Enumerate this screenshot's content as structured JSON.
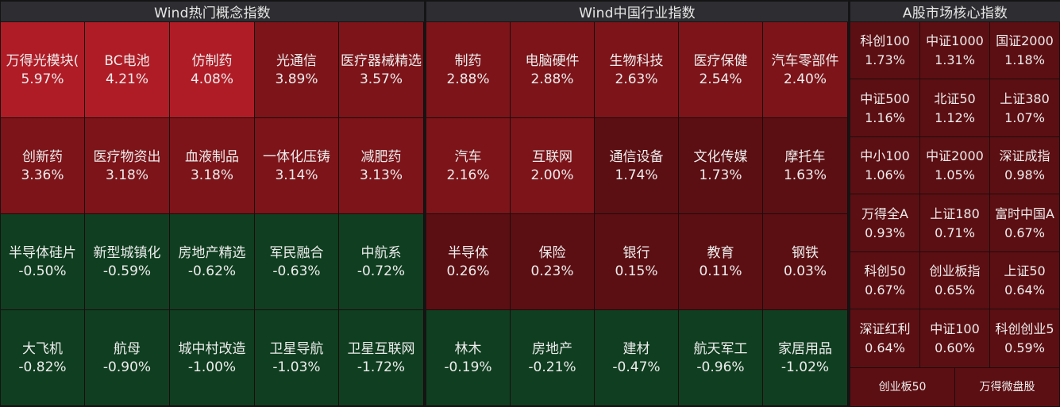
{
  "panels": [
    {
      "title": "Wind热门概念指数",
      "tiles": [
        {
          "name": "万得光模块(",
          "pct": "5.97%",
          "color": "#b01c26"
        },
        {
          "name": "BC电池",
          "pct": "4.21%",
          "color": "#b01c26"
        },
        {
          "name": "仿制药",
          "pct": "4.08%",
          "color": "#b01c26"
        },
        {
          "name": "光通信",
          "pct": "3.89%",
          "color": "#7c1419"
        },
        {
          "name": "医疗器械精选",
          "pct": "3.57%",
          "color": "#7c1419"
        },
        {
          "name": "创新药",
          "pct": "3.36%",
          "color": "#7c1419"
        },
        {
          "name": "医疗物资出",
          "pct": "3.18%",
          "color": "#7c1419"
        },
        {
          "name": "血液制品",
          "pct": "3.18%",
          "color": "#7c1419"
        },
        {
          "name": "一体化压铸",
          "pct": "3.14%",
          "color": "#7c1419"
        },
        {
          "name": "减肥药",
          "pct": "3.13%",
          "color": "#7c1419"
        },
        {
          "name": "半导体硅片",
          "pct": "-0.50%",
          "color": "#103e20"
        },
        {
          "name": "新型城镇化",
          "pct": "-0.59%",
          "color": "#103e20"
        },
        {
          "name": "房地产精选",
          "pct": "-0.62%",
          "color": "#103e20"
        },
        {
          "name": "军民融合",
          "pct": "-0.63%",
          "color": "#103e20"
        },
        {
          "name": "中航系",
          "pct": "-0.72%",
          "color": "#103e20"
        },
        {
          "name": "大飞机",
          "pct": "-0.82%",
          "color": "#103e20"
        },
        {
          "name": "航母",
          "pct": "-0.90%",
          "color": "#103e20"
        },
        {
          "name": "城中村改造",
          "pct": "-1.00%",
          "color": "#103e20"
        },
        {
          "name": "卫星导航",
          "pct": "-1.03%",
          "color": "#103e20"
        },
        {
          "name": "卫星互联网",
          "pct": "-1.72%",
          "color": "#103e20"
        }
      ]
    },
    {
      "title": "Wind中国行业指数",
      "tiles": [
        {
          "name": "制药",
          "pct": "2.88%",
          "color": "#7c1419"
        },
        {
          "name": "电脑硬件",
          "pct": "2.88%",
          "color": "#7c1419"
        },
        {
          "name": "生物科技",
          "pct": "2.63%",
          "color": "#7c1419"
        },
        {
          "name": "医疗保健",
          "pct": "2.54%",
          "color": "#7c1419"
        },
        {
          "name": "汽车零部件",
          "pct": "2.40%",
          "color": "#7c1419"
        },
        {
          "name": "汽车",
          "pct": "2.16%",
          "color": "#7c1419"
        },
        {
          "name": "互联网",
          "pct": "2.00%",
          "color": "#7c1419"
        },
        {
          "name": "通信设备",
          "pct": "1.74%",
          "color": "#5c0f13"
        },
        {
          "name": "文化传媒",
          "pct": "1.73%",
          "color": "#5c0f13"
        },
        {
          "name": "摩托车",
          "pct": "1.63%",
          "color": "#5c0f13"
        },
        {
          "name": "半导体",
          "pct": "0.26%",
          "color": "#5c0f13"
        },
        {
          "name": "保险",
          "pct": "0.23%",
          "color": "#5c0f13"
        },
        {
          "name": "银行",
          "pct": "0.15%",
          "color": "#5c0f13"
        },
        {
          "name": "教育",
          "pct": "0.11%",
          "color": "#5c0f13"
        },
        {
          "name": "钢铁",
          "pct": "0.03%",
          "color": "#5c0f13"
        },
        {
          "name": "林木",
          "pct": "-0.19%",
          "color": "#103e20"
        },
        {
          "name": "房地产",
          "pct": "-0.21%",
          "color": "#103e20"
        },
        {
          "name": "建材",
          "pct": "-0.47%",
          "color": "#103e20"
        },
        {
          "name": "航天军工",
          "pct": "-0.96%",
          "color": "#103e20"
        },
        {
          "name": "家居用品",
          "pct": "-1.02%",
          "color": "#103e20"
        }
      ]
    },
    {
      "title": "A股市场核心指数",
      "tiles": [
        {
          "name": "科创100",
          "pct": "1.73%",
          "color": "#5c0f13"
        },
        {
          "name": "中证1000",
          "pct": "1.31%",
          "color": "#5c0f13"
        },
        {
          "name": "国证2000",
          "pct": "1.18%",
          "color": "#5c0f13"
        },
        {
          "name": "中证500",
          "pct": "1.16%",
          "color": "#5c0f13"
        },
        {
          "name": "北证50",
          "pct": "1.12%",
          "color": "#5c0f13"
        },
        {
          "name": "上证380",
          "pct": "1.07%",
          "color": "#5c0f13"
        },
        {
          "name": "中小100",
          "pct": "1.06%",
          "color": "#5c0f13"
        },
        {
          "name": "中证2000",
          "pct": "1.05%",
          "color": "#5c0f13"
        },
        {
          "name": "深证成指",
          "pct": "0.98%",
          "color": "#5c0f13"
        },
        {
          "name": "万得全A",
          "pct": "0.93%",
          "color": "#5c0f13"
        },
        {
          "name": "上证180",
          "pct": "0.71%",
          "color": "#5c0f13"
        },
        {
          "name": "富时中国A",
          "pct": "0.67%",
          "color": "#5c0f13"
        },
        {
          "name": "科创50",
          "pct": "0.67%",
          "color": "#5c0f13"
        },
        {
          "name": "创业板指",
          "pct": "0.65%",
          "color": "#5c0f13"
        },
        {
          "name": "上证50",
          "pct": "0.64%",
          "color": "#5c0f13"
        },
        {
          "name": "深证红利",
          "pct": "0.64%",
          "color": "#5c0f13"
        },
        {
          "name": "中证100",
          "pct": "0.60%",
          "color": "#5c0f13"
        },
        {
          "name": "科创创业5",
          "pct": "0.59%",
          "color": "#5c0f13"
        },
        {
          "name": "创业板50",
          "pct": "",
          "color": "#5c0f13"
        },
        {
          "name": "万得微盘股",
          "pct": "",
          "color": "#5c0f13"
        }
      ]
    }
  ]
}
